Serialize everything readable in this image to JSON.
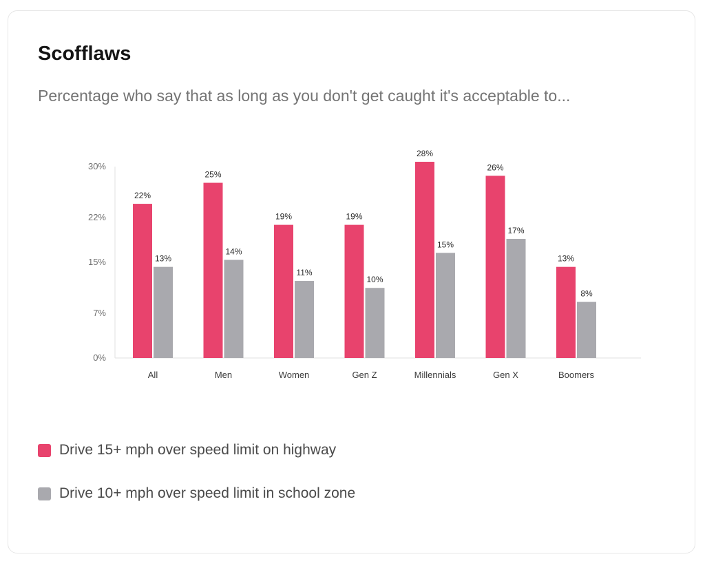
{
  "card": {
    "title": "Scofflaws",
    "subtitle": "Percentage who say that as long as you don't get caught it's acceptable to..."
  },
  "chart_data": {
    "type": "bar",
    "categories": [
      "All",
      "Men",
      "Women",
      "Gen Z",
      "Millennials",
      "Gen X",
      "Boomers"
    ],
    "series": [
      {
        "name": "Drive 15+ mph over speed limit on highway",
        "values": [
          22,
          25,
          19,
          19,
          28,
          26,
          13
        ],
        "labels": [
          "22%",
          "25%",
          "19%",
          "19%",
          "28%",
          "26%",
          "13%"
        ],
        "color": "#e8436d"
      },
      {
        "name": "Drive 10+ mph over speed limit in school zone",
        "values": [
          13,
          14,
          11,
          10,
          15,
          17,
          8
        ],
        "labels": [
          "13%",
          "14%",
          "11%",
          "10%",
          "15%",
          "17%",
          "8%"
        ],
        "color": "#a9a9ae"
      }
    ],
    "y_ticks": [
      {
        "value": 0,
        "label": "0%"
      },
      {
        "value": 7,
        "label": "7%"
      },
      {
        "value": 15,
        "label": "15%"
      },
      {
        "value": 22,
        "label": "22%"
      },
      {
        "value": 30,
        "label": "30%"
      }
    ],
    "ylim": [
      0,
      30
    ],
    "grid": false,
    "legend_position": "bottom-left",
    "xlabel": "",
    "ylabel": ""
  }
}
